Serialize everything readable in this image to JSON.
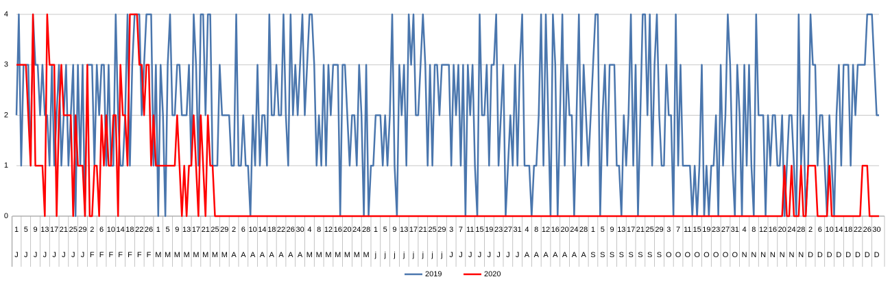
{
  "chart_data": {
    "type": "line",
    "categories": [
      "1",
      null,
      null,
      null,
      "5",
      null,
      null,
      null,
      "9",
      null,
      null,
      null,
      "13",
      null,
      null,
      null,
      "17",
      null,
      null,
      null,
      "21",
      null,
      null,
      null,
      "25",
      null,
      null,
      null,
      "29",
      null,
      null,
      null,
      "2",
      null,
      null,
      null,
      "6",
      null,
      null,
      null,
      "10",
      null,
      null,
      null,
      "14",
      null,
      null,
      null,
      "18",
      null,
      null,
      null,
      "22",
      null,
      null,
      null,
      "26",
      null,
      null,
      null,
      "1",
      null,
      null,
      null,
      "5",
      null,
      null,
      null,
      "9",
      null,
      null,
      null,
      "13",
      null,
      null,
      null,
      "17",
      null,
      null,
      null,
      "21",
      null,
      null,
      null,
      "25",
      null,
      null,
      null,
      "29",
      null,
      null,
      null,
      "2",
      null,
      null,
      null,
      "6",
      null,
      null,
      null,
      "10",
      null,
      null,
      null,
      "14",
      null,
      null,
      null,
      "18",
      null,
      null,
      null,
      "22",
      null,
      null,
      null,
      "26",
      null,
      null,
      null,
      "30",
      null,
      null,
      null,
      "4",
      null,
      null,
      null,
      "8",
      null,
      null,
      null,
      "12",
      null,
      null,
      null,
      "16",
      null,
      null,
      null,
      "20",
      null,
      null,
      null,
      "24",
      null,
      null,
      null,
      "28",
      null,
      null,
      null,
      "1",
      null,
      null,
      null,
      "5",
      null,
      null,
      null,
      "9",
      null,
      null,
      null,
      "13",
      null,
      null,
      null,
      "17",
      null,
      null,
      null,
      "21",
      null,
      null,
      null,
      "25",
      null,
      null,
      null,
      "29",
      null,
      null,
      null,
      "3",
      null,
      null,
      null,
      "7",
      null,
      null,
      null,
      "11",
      null,
      null,
      null,
      "15",
      null,
      null,
      null,
      "19",
      null,
      null,
      null,
      "23",
      null,
      null,
      null,
      "27",
      null,
      null,
      null,
      "31",
      null,
      null,
      null,
      "4",
      null,
      null,
      null,
      "8",
      null,
      null,
      null,
      "12",
      null,
      null,
      null,
      "16",
      null,
      null,
      null,
      "20",
      null,
      null,
      null,
      "24",
      null,
      null,
      null,
      "28",
      null,
      null,
      null,
      "1",
      null,
      null,
      null,
      "5",
      null,
      null,
      null,
      "9",
      null,
      null,
      null,
      "13",
      null,
      null,
      null,
      "17",
      null,
      null,
      null,
      "21",
      null,
      null,
      null,
      "25",
      null,
      null,
      null,
      "29",
      null,
      null,
      null,
      "3",
      null,
      null,
      null,
      "7",
      null,
      null,
      null,
      "11",
      null,
      null,
      null,
      "15",
      null,
      null,
      null,
      "19",
      null,
      null,
      null,
      "23",
      null,
      null,
      null,
      "27",
      null,
      null,
      null,
      "31",
      null,
      null,
      null,
      "4",
      null,
      null,
      null,
      "8",
      null,
      null,
      null,
      "12",
      null,
      null,
      null,
      "16",
      null,
      null,
      null,
      "20",
      null,
      null,
      null,
      "24",
      null,
      null,
      null,
      "28",
      null,
      null,
      null,
      "2",
      null,
      null,
      null,
      "6",
      null,
      null,
      null,
      "10",
      null,
      null,
      null,
      "14",
      null,
      null,
      null,
      "18",
      null,
      null,
      null,
      "22",
      null,
      null,
      null,
      "26",
      null,
      null,
      null,
      "30",
      null
    ],
    "months": [
      "J",
      null,
      null,
      null,
      "J",
      null,
      null,
      null,
      "J",
      null,
      null,
      null,
      "J",
      null,
      null,
      null,
      "J",
      null,
      null,
      null,
      "J",
      null,
      null,
      null,
      "J",
      null,
      null,
      null,
      "J",
      null,
      null,
      null,
      "F",
      null,
      null,
      null,
      "F",
      null,
      null,
      null,
      "F",
      null,
      null,
      null,
      "F",
      null,
      null,
      null,
      "F",
      null,
      null,
      null,
      "F",
      null,
      null,
      null,
      "F",
      null,
      null,
      null,
      "M",
      null,
      null,
      null,
      "M",
      null,
      null,
      null,
      "M",
      null,
      null,
      null,
      "M",
      null,
      null,
      null,
      "M",
      null,
      null,
      null,
      "M",
      null,
      null,
      null,
      "M",
      null,
      null,
      null,
      "M",
      null,
      null,
      null,
      "A",
      null,
      null,
      null,
      "A",
      null,
      null,
      null,
      "A",
      null,
      null,
      null,
      "A",
      null,
      null,
      null,
      "A",
      null,
      null,
      null,
      "A",
      null,
      null,
      null,
      "A",
      null,
      null,
      null,
      "A",
      null,
      null,
      null,
      "M",
      null,
      null,
      null,
      "M",
      null,
      null,
      null,
      "M",
      null,
      null,
      null,
      "M",
      null,
      null,
      null,
      "M",
      null,
      null,
      null,
      "M",
      null,
      null,
      null,
      "M",
      null,
      null,
      null,
      "j",
      null,
      null,
      null,
      "j",
      null,
      null,
      null,
      "j",
      null,
      null,
      null,
      "j",
      null,
      null,
      null,
      "j",
      null,
      null,
      null,
      "j",
      null,
      null,
      null,
      "j",
      null,
      null,
      null,
      "j",
      null,
      null,
      null,
      "J",
      null,
      null,
      null,
      "J",
      null,
      null,
      null,
      "J",
      null,
      null,
      null,
      "J",
      null,
      null,
      null,
      "J",
      null,
      null,
      null,
      "J",
      null,
      null,
      null,
      "J",
      null,
      null,
      null,
      "J",
      null,
      null,
      null,
      "A",
      null,
      null,
      null,
      "A",
      null,
      null,
      null,
      "A",
      null,
      null,
      null,
      "A",
      null,
      null,
      null,
      "A",
      null,
      null,
      null,
      "A",
      null,
      null,
      null,
      "A",
      null,
      null,
      null,
      "S",
      null,
      null,
      null,
      "S",
      null,
      null,
      null,
      "S",
      null,
      null,
      null,
      "S",
      null,
      null,
      null,
      "S",
      null,
      null,
      null,
      "S",
      null,
      null,
      null,
      "S",
      null,
      null,
      null,
      "S",
      null,
      null,
      null,
      "O",
      null,
      null,
      null,
      "O",
      null,
      null,
      null,
      "O",
      null,
      null,
      null,
      "O",
      null,
      null,
      null,
      "O",
      null,
      null,
      null,
      "O",
      null,
      null,
      null,
      "O",
      null,
      null,
      null,
      "O",
      null,
      null,
      null,
      "N",
      null,
      null,
      null,
      "N",
      null,
      null,
      null,
      "N",
      null,
      null,
      null,
      "N",
      null,
      null,
      null,
      "N",
      null,
      null,
      null,
      "N",
      null,
      null,
      null,
      "N",
      null,
      null,
      null,
      "D",
      null,
      null,
      null,
      "D",
      null,
      null,
      null,
      "D",
      null,
      null,
      null,
      "D",
      null,
      null,
      null,
      "D",
      null,
      null,
      null,
      "D",
      null,
      null,
      null,
      "D",
      null,
      null,
      null,
      "D",
      null
    ],
    "series": [
      {
        "name": "2019",
        "color": "#4a76ad",
        "values": [
          2,
          4,
          1,
          3,
          3,
          3,
          1,
          4,
          3,
          3,
          2,
          3,
          2,
          2,
          1,
          3,
          1,
          2,
          3,
          1,
          2,
          3,
          1,
          2,
          3,
          0,
          3,
          1,
          3,
          0,
          3,
          3,
          3,
          1,
          3,
          2,
          3,
          3,
          1,
          3,
          1,
          1,
          4,
          2,
          1,
          1,
          2,
          4,
          1,
          3,
          4,
          4,
          4,
          2,
          3,
          4,
          4,
          4,
          1,
          3,
          0,
          3,
          2,
          0,
          3,
          4,
          2,
          2,
          3,
          3,
          2,
          2,
          2,
          3,
          1,
          4,
          3,
          1,
          4,
          4,
          2,
          4,
          4,
          1,
          1,
          1,
          3,
          2,
          2,
          2,
          2,
          1,
          1,
          4,
          1,
          1,
          2,
          1,
          1,
          0,
          2,
          1,
          3,
          1,
          2,
          2,
          1,
          4,
          2,
          2,
          3,
          2,
          2,
          4,
          2,
          1,
          4,
          2,
          3,
          2,
          3,
          4,
          2,
          3,
          4,
          4,
          3,
          1,
          2,
          1,
          3,
          1,
          3,
          2,
          3,
          3,
          3,
          0,
          3,
          3,
          2,
          1,
          2,
          2,
          1,
          3,
          2,
          0,
          3,
          0,
          1,
          1,
          2,
          2,
          2,
          1,
          2,
          1,
          2,
          4,
          1,
          0,
          3,
          2,
          3,
          1,
          4,
          3,
          4,
          2,
          2,
          3,
          4,
          3,
          1,
          3,
          1,
          3,
          3,
          2,
          3,
          3,
          3,
          3,
          1,
          3,
          2,
          3,
          1,
          3,
          0,
          3,
          2,
          3,
          1,
          0,
          4,
          2,
          2,
          3,
          1,
          3,
          3,
          4,
          1,
          2,
          3,
          0,
          1,
          2,
          1,
          3,
          1,
          3,
          4,
          1,
          1,
          1,
          0,
          1,
          1,
          2,
          4,
          1,
          4,
          2,
          0,
          4,
          3,
          0,
          2,
          4,
          1,
          3,
          2,
          2,
          0,
          2,
          4,
          1,
          3,
          2,
          1,
          2,
          3,
          4,
          4,
          0,
          2,
          3,
          1,
          3,
          3,
          3,
          1,
          1,
          0,
          2,
          1,
          2,
          4,
          1,
          3,
          0,
          2,
          4,
          4,
          2,
          4,
          1,
          3,
          4,
          2,
          1,
          1,
          3,
          2,
          2,
          0,
          4,
          1,
          3,
          1,
          1,
          1,
          1,
          0,
          1,
          0,
          1,
          3,
          0,
          1,
          0,
          1,
          1,
          2,
          0,
          3,
          1,
          2,
          4,
          3,
          1,
          0,
          3,
          2,
          0,
          3,
          1,
          3,
          1,
          0,
          4,
          2,
          2,
          2,
          0,
          2,
          1,
          2,
          2,
          1,
          1,
          2,
          0,
          1,
          2,
          2,
          1,
          0,
          4,
          1,
          2,
          0,
          1,
          4,
          3,
          3,
          1,
          2,
          2,
          1,
          0,
          2,
          1,
          0,
          2,
          3,
          1,
          3,
          3,
          3,
          1,
          3,
          2,
          3,
          3,
          3,
          3,
          4,
          4,
          4,
          3,
          2,
          2
        ]
      },
      {
        "name": "2020",
        "color": "#ff0000",
        "values": [
          3,
          3,
          3,
          3,
          3,
          2,
          1,
          4,
          1,
          1,
          1,
          1,
          0,
          4,
          3,
          3,
          3,
          0,
          2,
          3,
          2,
          2,
          2,
          2,
          0,
          2,
          1,
          1,
          1,
          0,
          3,
          0,
          0,
          1,
          1,
          0,
          2,
          1,
          2,
          1,
          1,
          2,
          2,
          0,
          3,
          2,
          2,
          1,
          4,
          4,
          4,
          4,
          3,
          3,
          2,
          3,
          3,
          1,
          2,
          1,
          1,
          1,
          1,
          1,
          1,
          1,
          1,
          1,
          2,
          1,
          0,
          1,
          0,
          1,
          1,
          2,
          1,
          0,
          2,
          1,
          0,
          2,
          1,
          1,
          0,
          0,
          0,
          0,
          0,
          0,
          0,
          0,
          0,
          0,
          0,
          0,
          0,
          0,
          0,
          0,
          0,
          0,
          0,
          0,
          0,
          0,
          0,
          0,
          0,
          0,
          0,
          0,
          0,
          0,
          0,
          0,
          0,
          0,
          0,
          0,
          0,
          0,
          0,
          0,
          0,
          0,
          0,
          0,
          0,
          0,
          0,
          0,
          0,
          0,
          0,
          0,
          0,
          0,
          0,
          0,
          0,
          0,
          0,
          0,
          0,
          0,
          0,
          0,
          0,
          0,
          0,
          0,
          0,
          0,
          0,
          0,
          0,
          0,
          0,
          0,
          0,
          0,
          0,
          0,
          0,
          0,
          0,
          0,
          0,
          0,
          0,
          0,
          0,
          0,
          0,
          0,
          0,
          0,
          0,
          0,
          0,
          0,
          0,
          0,
          0,
          0,
          0,
          0,
          0,
          0,
          0,
          0,
          0,
          0,
          0,
          0,
          0,
          0,
          0,
          0,
          0,
          0,
          0,
          0,
          0,
          0,
          0,
          0,
          0,
          0,
          0,
          0,
          0,
          0,
          0,
          0,
          0,
          0,
          0,
          0,
          0,
          0,
          0,
          0,
          0,
          0,
          0,
          0,
          0,
          0,
          0,
          0,
          0,
          0,
          0,
          0,
          0,
          0,
          0,
          0,
          0,
          0,
          0,
          0,
          0,
          0,
          0,
          0,
          0,
          0,
          0,
          0,
          0,
          0,
          0,
          0,
          0,
          0,
          0,
          0,
          0,
          0,
          0,
          0,
          0,
          0,
          0,
          0,
          0,
          0,
          0,
          0,
          0,
          0,
          0,
          0,
          0,
          0,
          0,
          0,
          0,
          0,
          0,
          0,
          0,
          0,
          0,
          0,
          0,
          0,
          0,
          0,
          0,
          0,
          0,
          0,
          0,
          0,
          0,
          0,
          0,
          0,
          0,
          0,
          0,
          0,
          0,
          0,
          0,
          0,
          0,
          0,
          0,
          0,
          0,
          0,
          0,
          0,
          0,
          0,
          0,
          0,
          0,
          0,
          0,
          1,
          0,
          0,
          1,
          0,
          0,
          0,
          1,
          0,
          0,
          1,
          1,
          1,
          1,
          0,
          0,
          0,
          0,
          0,
          1,
          0,
          0,
          0,
          0,
          0,
          0,
          0,
          0,
          0,
          0,
          0,
          0,
          0,
          1,
          1,
          1,
          0,
          0,
          0,
          0,
          0
        ]
      }
    ],
    "ylim": [
      0,
      4
    ],
    "yticks": [
      0,
      1,
      2,
      3,
      4
    ],
    "grid": true
  }
}
